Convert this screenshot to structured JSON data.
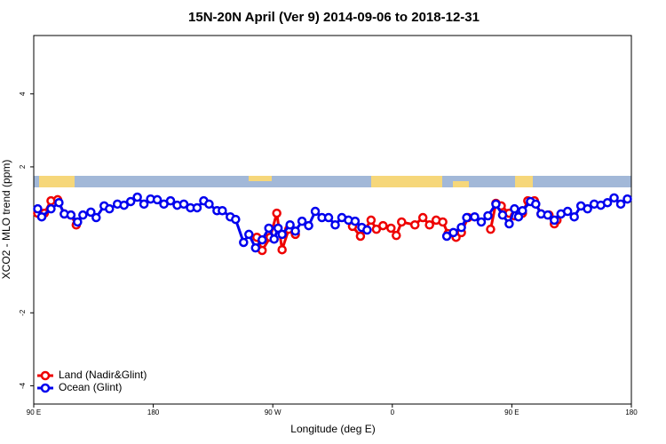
{
  "chart_data": {
    "type": "line",
    "title": "15N-20N April (Ver 9)   2014-09-06 to 2018-12-31",
    "x_label": "Longitude (deg E)",
    "y_label": "XCO2 - MLO trend (ppm)",
    "xlim": [
      90,
      540
    ],
    "xticks": [
      {
        "value": 90,
        "label": "90 E"
      },
      {
        "value": 180,
        "label": "180"
      },
      {
        "value": 270,
        "label": "90 W"
      },
      {
        "value": 360,
        "label": "0"
      },
      {
        "value": 450,
        "label": "90 E"
      },
      {
        "value": 540,
        "label": "180"
      }
    ],
    "ylim": [
      -4.5,
      5.6
    ],
    "yticks": [
      -4,
      -2,
      2,
      4
    ],
    "legend": "bottom-left",
    "series": [
      {
        "name": "Land (Nadir&Glint)",
        "color": "#ee0000",
        "x": [
          93,
          98,
          103,
          108,
          113,
          118,
          122,
          null,
          258,
          262,
          268,
          273,
          277,
          282,
          287,
          null,
          330,
          336,
          344,
          348,
          353,
          359,
          363,
          367,
          377,
          383,
          388,
          393,
          398,
          402,
          408,
          412,
          417,
          null,
          434,
          438,
          442,
          448,
          452,
          458,
          462,
          467,
          472,
          478,
          482,
          484
        ],
        "values": [
          0.73,
          0.73,
          1.07,
          1.1,
          0.71,
          0.68,
          0.41,
          null,
          0.07,
          -0.29,
          0.07,
          0.73,
          -0.27,
          0.29,
          0.15,
          null,
          0.37,
          0.1,
          0.54,
          0.29,
          0.39,
          0.32,
          0.12,
          0.49,
          0.41,
          0.61,
          0.41,
          0.54,
          0.49,
          0.17,
          0.07,
          0.2,
          0.61,
          null,
          0.29,
          1.0,
          0.93,
          0.73,
          0.66,
          0.73,
          1.07,
          1.07,
          0.71,
          0.68,
          0.44,
          0.54
        ]
      },
      {
        "name": "Ocean (Glint)",
        "color": "#0000ee",
        "x": [
          93,
          96,
          103,
          109,
          113,
          118,
          123,
          127,
          133,
          137,
          143,
          147,
          153,
          158,
          163,
          168,
          173,
          178,
          183,
          188,
          193,
          198,
          203,
          208,
          213,
          218,
          222,
          228,
          232,
          238,
          242,
          248,
          252,
          257,
          262,
          267,
          271,
          274,
          277,
          283,
          287,
          292,
          297,
          302,
          307,
          312,
          317,
          322,
          327,
          332,
          337,
          341,
          null,
          401,
          406,
          412,
          416,
          422,
          427,
          432,
          438,
          443,
          448,
          452,
          455,
          458,
          464,
          468,
          472,
          477,
          482,
          487,
          492,
          497,
          502,
          507,
          512,
          517,
          522,
          527,
          532,
          537
        ],
        "values": [
          0.85,
          0.63,
          0.85,
          1.02,
          0.71,
          0.68,
          0.49,
          0.68,
          0.76,
          0.61,
          0.93,
          0.85,
          0.98,
          0.95,
          1.05,
          1.17,
          0.98,
          1.12,
          1.1,
          0.98,
          1.07,
          0.95,
          0.98,
          0.88,
          0.88,
          1.07,
          0.98,
          0.8,
          0.8,
          0.63,
          0.56,
          -0.07,
          0.15,
          -0.22,
          0.0,
          0.32,
          0.02,
          0.32,
          0.15,
          0.41,
          0.24,
          0.51,
          0.39,
          0.78,
          0.61,
          0.61,
          0.41,
          0.61,
          0.54,
          0.51,
          0.34,
          0.27,
          null,
          0.1,
          0.2,
          0.34,
          0.61,
          0.63,
          0.49,
          0.66,
          0.98,
          0.68,
          0.44,
          0.85,
          0.63,
          0.8,
          1.05,
          0.98,
          0.71,
          0.68,
          0.54,
          0.71,
          0.78,
          0.63,
          0.93,
          0.85,
          0.98,
          0.95,
          1.02,
          1.15,
          0.98,
          1.12
        ]
      }
    ]
  }
}
